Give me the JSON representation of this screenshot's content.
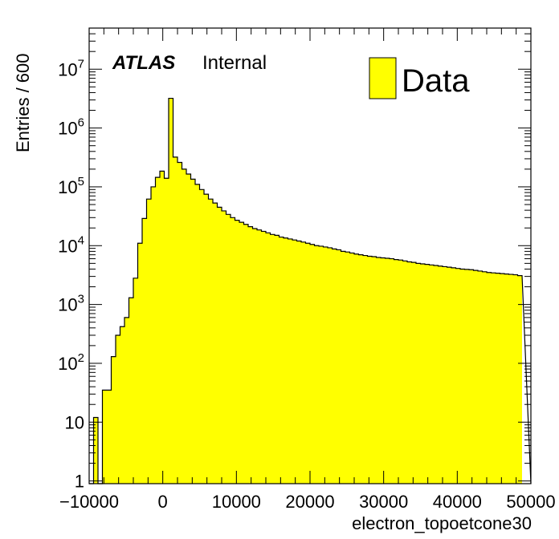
{
  "chart_data": {
    "type": "bar",
    "xlabel": "electron_topoetcone30",
    "ylabel": "Entries / 600",
    "xlim": [
      -10000,
      50000
    ],
    "ylim": [
      0.9,
      50000000
    ],
    "yscale": "log",
    "bin_width": 600,
    "bin_start": -10000,
    "fill_color": "#ffff00",
    "line_color": "#000000",
    "x_ticks": [
      -10000,
      0,
      10000,
      20000,
      30000,
      40000,
      50000
    ],
    "x_tick_labels": [
      "−10000",
      "0",
      "10000",
      "20000",
      "30000",
      "40000",
      "50000"
    ],
    "y_ticks": [
      {
        "value": 1,
        "base": "1",
        "exp": ""
      },
      {
        "value": 10,
        "base": "10",
        "exp": ""
      },
      {
        "value": 100,
        "base": "10",
        "exp": "2"
      },
      {
        "value": 1000,
        "base": "10",
        "exp": "3"
      },
      {
        "value": 10000,
        "base": "10",
        "exp": "4"
      },
      {
        "value": 100000,
        "base": "10",
        "exp": "5"
      },
      {
        "value": 1000000,
        "base": "10",
        "exp": "6"
      },
      {
        "value": 10000000,
        "base": "10",
        "exp": "7"
      }
    ],
    "legend": {
      "label": "Data",
      "position": "top-right"
    },
    "annotation": {
      "experiment": "ATLAS",
      "status": "Internal"
    },
    "values": [
      0,
      12,
      0,
      35,
      35,
      130,
      300,
      420,
      600,
      1300,
      2800,
      11000,
      29000,
      62000,
      100000,
      145000,
      185000,
      140000,
      3200000,
      320000,
      260000,
      200000,
      165000,
      135000,
      110000,
      90000,
      75000,
      62000,
      53000,
      45000,
      39000,
      34000,
      30000,
      27000,
      25000,
      23000,
      21000,
      19500,
      18500,
      17500,
      16500,
      15500,
      15000,
      14000,
      13500,
      13000,
      12500,
      12000,
      11500,
      11000,
      10500,
      10000,
      9800,
      9500,
      9200,
      8800,
      8500,
      8000,
      7800,
      7500,
      7200,
      7000,
      6800,
      6600,
      6500,
      6300,
      6200,
      6100,
      6000,
      5800,
      5700,
      5500,
      5300,
      5200,
      5000,
      4900,
      4800,
      4700,
      4600,
      4500,
      4400,
      4300,
      4200,
      4100,
      4000,
      3950,
      3900,
      3800,
      3700,
      3600,
      3500,
      3450,
      3400,
      3350,
      3300,
      3250,
      3200,
      3100
    ]
  }
}
